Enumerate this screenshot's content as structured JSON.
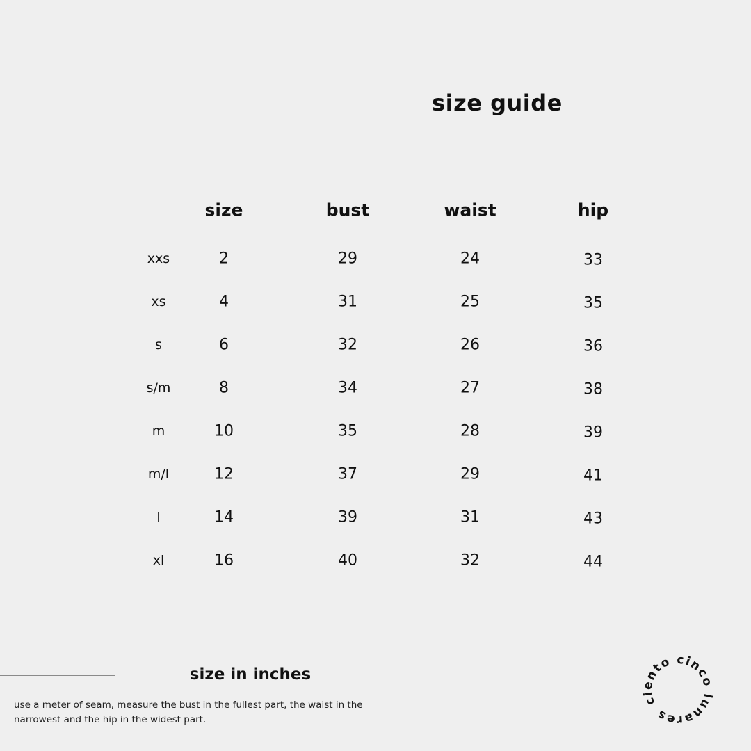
{
  "title": "size guide",
  "table": {
    "headers": [
      "size",
      "bust",
      "waist",
      "hip"
    ],
    "rows": [
      {
        "label": "xxs",
        "size": "2",
        "bust": "29",
        "waist": "24",
        "hip": "33"
      },
      {
        "label": "xs",
        "size": "4",
        "bust": "31",
        "waist": "25",
        "hip": "35"
      },
      {
        "label": "s",
        "size": "6",
        "bust": "32",
        "waist": "26",
        "hip": "36"
      },
      {
        "label": "s/m",
        "size": "8",
        "bust": "34",
        "waist": "27",
        "hip": "38"
      },
      {
        "label": "m",
        "size": "10",
        "bust": "35",
        "waist": "28",
        "hip": "39"
      },
      {
        "label": "m/l",
        "size": "12",
        "bust": "37",
        "waist": "29",
        "hip": "41"
      },
      {
        "label": "l",
        "size": "14",
        "bust": "39",
        "waist": "31",
        "hip": "43"
      },
      {
        "label": "xl",
        "size": "16",
        "bust": "40",
        "waist": "32",
        "hip": "44"
      }
    ]
  },
  "footer": {
    "subtitle": "size in inches",
    "note": "use a meter of seam, measure the bust in the fullest part, the waist in the narrowest and the hip in the widest part."
  },
  "logo": {
    "text": "ciento cinco lunares"
  },
  "colors": {
    "background": "#efefef",
    "text": "#111111",
    "rule": "#8a8a8a"
  }
}
